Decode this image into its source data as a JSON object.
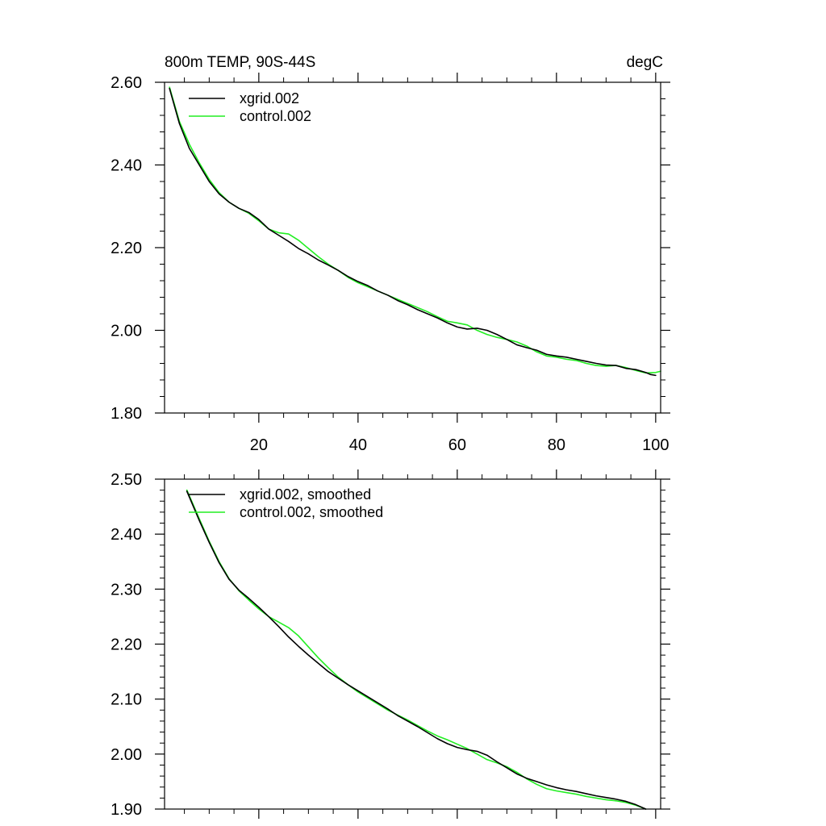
{
  "colors": {
    "xgrid": "#000000",
    "control": "#22ee22",
    "axis": "#000000",
    "background": "#ffffff"
  },
  "chart_data": [
    {
      "type": "line",
      "title": "800m TEMP, 90S-44S",
      "units": "degC",
      "xlim": [
        1,
        101
      ],
      "ylim": [
        1.8,
        2.6
      ],
      "yticks": [
        {
          "value": 1.8,
          "label": "1.80"
        },
        {
          "value": 2.0,
          "label": "2.00"
        },
        {
          "value": 2.2,
          "label": "2.20"
        },
        {
          "value": 2.4,
          "label": "2.40"
        },
        {
          "value": 2.6,
          "label": "2.60"
        }
      ],
      "xticks": [
        {
          "value": 20,
          "label": "20"
        },
        {
          "value": 40,
          "label": "40"
        },
        {
          "value": 60,
          "label": "60"
        },
        {
          "value": 80,
          "label": "80"
        },
        {
          "value": 100,
          "label": "100"
        }
      ],
      "series": [
        {
          "name": "xgrid.002",
          "color_key": "xgrid",
          "points": [
            [
              2,
              2.585
            ],
            [
              4,
              2.5
            ],
            [
              6,
              2.44
            ],
            [
              8,
              2.4
            ],
            [
              10,
              2.36
            ],
            [
              12,
              2.33
            ],
            [
              14,
              2.31
            ],
            [
              16,
              2.295
            ],
            [
              18,
              2.285
            ],
            [
              20,
              2.268
            ],
            [
              22,
              2.245
            ],
            [
              24,
              2.23
            ],
            [
              26,
              2.215
            ],
            [
              28,
              2.198
            ],
            [
              30,
              2.185
            ],
            [
              32,
              2.17
            ],
            [
              34,
              2.158
            ],
            [
              36,
              2.145
            ],
            [
              38,
              2.13
            ],
            [
              40,
              2.118
            ],
            [
              42,
              2.108
            ],
            [
              44,
              2.095
            ],
            [
              46,
              2.085
            ],
            [
              48,
              2.072
            ],
            [
              50,
              2.062
            ],
            [
              52,
              2.05
            ],
            [
              54,
              2.04
            ],
            [
              56,
              2.03
            ],
            [
              58,
              2.018
            ],
            [
              60,
              2.008
            ],
            [
              62,
              2.003
            ],
            [
              64,
              2.005
            ],
            [
              66,
              2.0
            ],
            [
              68,
              1.99
            ],
            [
              70,
              1.978
            ],
            [
              72,
              1.965
            ],
            [
              74,
              1.958
            ],
            [
              76,
              1.952
            ],
            [
              78,
              1.942
            ],
            [
              80,
              1.938
            ],
            [
              82,
              1.935
            ],
            [
              84,
              1.93
            ],
            [
              86,
              1.925
            ],
            [
              88,
              1.92
            ],
            [
              90,
              1.916
            ],
            [
              92,
              1.915
            ],
            [
              94,
              1.908
            ],
            [
              96,
              1.905
            ],
            [
              98,
              1.898
            ],
            [
              99,
              1.893
            ],
            [
              100,
              1.891
            ]
          ]
        },
        {
          "name": "control.002",
          "color_key": "control",
          "points": [
            [
              2,
              2.588
            ],
            [
              4,
              2.505
            ],
            [
              6,
              2.45
            ],
            [
              8,
              2.405
            ],
            [
              10,
              2.365
            ],
            [
              12,
              2.333
            ],
            [
              14,
              2.31
            ],
            [
              16,
              2.295
            ],
            [
              18,
              2.283
            ],
            [
              20,
              2.265
            ],
            [
              22,
              2.245
            ],
            [
              24,
              2.236
            ],
            [
              26,
              2.233
            ],
            [
              28,
              2.218
            ],
            [
              30,
              2.198
            ],
            [
              32,
              2.178
            ],
            [
              34,
              2.16
            ],
            [
              36,
              2.145
            ],
            [
              38,
              2.128
            ],
            [
              40,
              2.115
            ],
            [
              42,
              2.105
            ],
            [
              44,
              2.095
            ],
            [
              46,
              2.085
            ],
            [
              48,
              2.075
            ],
            [
              50,
              2.065
            ],
            [
              52,
              2.055
            ],
            [
              54,
              2.045
            ],
            [
              56,
              2.033
            ],
            [
              58,
              2.022
            ],
            [
              60,
              2.018
            ],
            [
              62,
              2.013
            ],
            [
              64,
              2.0
            ],
            [
              66,
              1.99
            ],
            [
              68,
              1.983
            ],
            [
              70,
              1.978
            ],
            [
              72,
              1.972
            ],
            [
              74,
              1.962
            ],
            [
              76,
              1.948
            ],
            [
              78,
              1.938
            ],
            [
              80,
              1.935
            ],
            [
              82,
              1.93
            ],
            [
              84,
              1.927
            ],
            [
              86,
              1.92
            ],
            [
              88,
              1.915
            ],
            [
              90,
              1.913
            ],
            [
              92,
              1.915
            ],
            [
              94,
              1.91
            ],
            [
              96,
              1.903
            ],
            [
              98,
              1.897
            ],
            [
              100,
              1.898
            ],
            [
              101,
              1.901
            ]
          ]
        }
      ]
    },
    {
      "type": "line",
      "xlim": [
        1,
        101
      ],
      "ylim": [
        1.9,
        2.5
      ],
      "yticks": [
        {
          "value": 1.9,
          "label": "1.90"
        },
        {
          "value": 2.0,
          "label": "2.00"
        },
        {
          "value": 2.1,
          "label": "2.10"
        },
        {
          "value": 2.2,
          "label": "2.20"
        },
        {
          "value": 2.3,
          "label": "2.30"
        },
        {
          "value": 2.4,
          "label": "2.40"
        },
        {
          "value": 2.5,
          "label": "2.50"
        }
      ],
      "xticks": [
        {
          "value": 20,
          "label": ""
        },
        {
          "value": 40,
          "label": ""
        },
        {
          "value": 60,
          "label": ""
        },
        {
          "value": 80,
          "label": ""
        },
        {
          "value": 100,
          "label": ""
        }
      ],
      "series": [
        {
          "name": "xgrid.002, smoothed",
          "color_key": "xgrid",
          "points": [
            [
              5.5,
              2.478
            ],
            [
              8,
              2.425
            ],
            [
              10,
              2.385
            ],
            [
              12,
              2.348
            ],
            [
              14,
              2.318
            ],
            [
              16,
              2.298
            ],
            [
              18,
              2.283
            ],
            [
              20,
              2.267
            ],
            [
              22,
              2.25
            ],
            [
              24,
              2.232
            ],
            [
              26,
              2.213
            ],
            [
              28,
              2.196
            ],
            [
              30,
              2.18
            ],
            [
              32,
              2.165
            ],
            [
              34,
              2.15
            ],
            [
              36,
              2.138
            ],
            [
              38,
              2.126
            ],
            [
              40,
              2.115
            ],
            [
              42,
              2.104
            ],
            [
              44,
              2.093
            ],
            [
              46,
              2.082
            ],
            [
              48,
              2.07
            ],
            [
              50,
              2.06
            ],
            [
              52,
              2.05
            ],
            [
              54,
              2.039
            ],
            [
              56,
              2.028
            ],
            [
              58,
              2.019
            ],
            [
              60,
              2.012
            ],
            [
              62,
              2.008
            ],
            [
              64,
              2.005
            ],
            [
              66,
              1.998
            ],
            [
              68,
              1.986
            ],
            [
              70,
              1.975
            ],
            [
              72,
              1.964
            ],
            [
              74,
              1.956
            ],
            [
              76,
              1.95
            ],
            [
              78,
              1.944
            ],
            [
              80,
              1.939
            ],
            [
              82,
              1.935
            ],
            [
              84,
              1.932
            ],
            [
              86,
              1.928
            ],
            [
              88,
              1.924
            ],
            [
              90,
              1.921
            ],
            [
              92,
              1.918
            ],
            [
              94,
              1.914
            ],
            [
              96,
              1.908
            ],
            [
              98,
              1.9
            ]
          ]
        },
        {
          "name": "control.002, smoothed",
          "color_key": "control",
          "points": [
            [
              5.5,
              2.48
            ],
            [
              8,
              2.428
            ],
            [
              10,
              2.387
            ],
            [
              12,
              2.35
            ],
            [
              14,
              2.319
            ],
            [
              16,
              2.297
            ],
            [
              18,
              2.28
            ],
            [
              20,
              2.264
            ],
            [
              22,
              2.25
            ],
            [
              24,
              2.24
            ],
            [
              26,
              2.23
            ],
            [
              28,
              2.215
            ],
            [
              30,
              2.195
            ],
            [
              32,
              2.175
            ],
            [
              34,
              2.157
            ],
            [
              36,
              2.14
            ],
            [
              38,
              2.126
            ],
            [
              40,
              2.113
            ],
            [
              42,
              2.102
            ],
            [
              44,
              2.091
            ],
            [
              46,
              2.08
            ],
            [
              48,
              2.071
            ],
            [
              50,
              2.062
            ],
            [
              52,
              2.052
            ],
            [
              54,
              2.042
            ],
            [
              56,
              2.033
            ],
            [
              58,
              2.026
            ],
            [
              60,
              2.018
            ],
            [
              62,
              2.01
            ],
            [
              64,
              2.0
            ],
            [
              66,
              1.99
            ],
            [
              68,
              1.984
            ],
            [
              70,
              1.977
            ],
            [
              72,
              1.967
            ],
            [
              74,
              1.955
            ],
            [
              76,
              1.945
            ],
            [
              78,
              1.937
            ],
            [
              80,
              1.933
            ],
            [
              82,
              1.93
            ],
            [
              84,
              1.927
            ],
            [
              86,
              1.923
            ],
            [
              88,
              1.92
            ],
            [
              90,
              1.917
            ],
            [
              92,
              1.915
            ],
            [
              94,
              1.912
            ],
            [
              96,
              1.907
            ],
            [
              98,
              1.9
            ]
          ]
        }
      ]
    }
  ]
}
